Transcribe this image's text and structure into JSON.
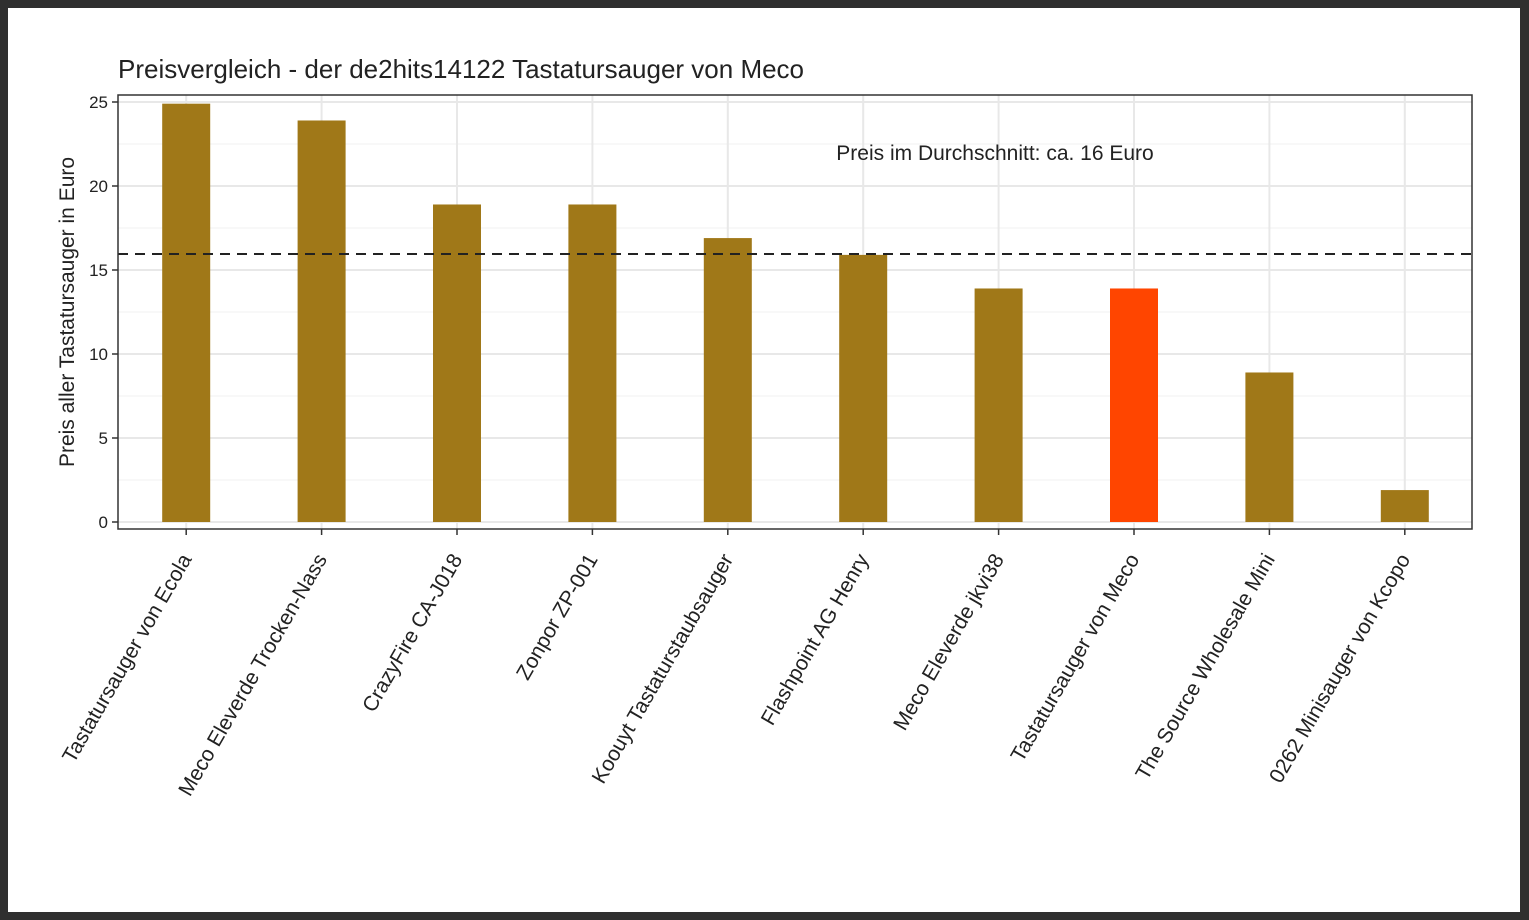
{
  "chart_data": {
    "type": "bar",
    "title": "Preisvergleich - der de2hits14122 Tastatursauger von Meco",
    "xlabel": "",
    "ylabel": "Preis aller Tastatursauger in Euro",
    "categories": [
      "Tastatursauger von Ecola",
      "Meco Eleverde Trocken-Nass",
      "CrazyFire CA-J018",
      "Zonpor ZP-001",
      "Koouyt Tastaturstaubsauger",
      "Flashpoint AG Henry",
      "Meco Eleverde jkvi38",
      "Tastatursauger von Meco",
      "The Source Wholesale Mini",
      "0262 Minisauger von Kcopo"
    ],
    "values": [
      24.9,
      23.9,
      18.9,
      18.9,
      16.9,
      15.9,
      13.9,
      13.9,
      8.9,
      1.9
    ],
    "highlight_index": 7,
    "colors": {
      "bar": "#A07818",
      "highlight": "#FF4500"
    },
    "ylim": [
      0,
      25
    ],
    "yticks": [
      0,
      5,
      10,
      15,
      20,
      25
    ],
    "grid": true,
    "mean_line": 16,
    "annotation": "Preis im Durchschnitt: ca. 16 Euro"
  }
}
